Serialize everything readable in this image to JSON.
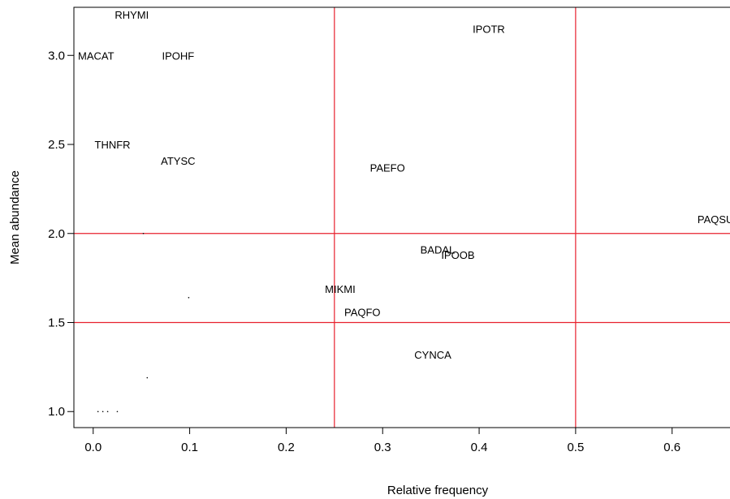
{
  "chart_data": {
    "type": "scatter",
    "xlabel": "Relative frequency",
    "ylabel": "Mean abundance",
    "xlim": [
      -0.02,
      0.66
    ],
    "ylim": [
      0.91,
      3.27
    ],
    "x_ticks": [
      "0.0",
      "0.1",
      "0.2",
      "0.3",
      "0.4",
      "0.5",
      "0.6"
    ],
    "y_ticks": [
      "1.0",
      "1.5",
      "2.0",
      "2.5",
      "3.0"
    ],
    "reference_lines": {
      "x": [
        0.25,
        0.5
      ],
      "y": [
        1.5,
        2.0
      ],
      "color": "#e8202e"
    },
    "points": [
      {
        "label": "RHYMI",
        "x": 0.04,
        "y": 3.23
      },
      {
        "label": "IPOTR",
        "x": 0.41,
        "y": 3.15
      },
      {
        "label": "MACAT",
        "x": 0.003,
        "y": 3.0
      },
      {
        "label": "IPOHF",
        "x": 0.088,
        "y": 3.0
      },
      {
        "label": "THNFR",
        "x": 0.02,
        "y": 2.5
      },
      {
        "label": "ATYSC",
        "x": 0.088,
        "y": 2.41
      },
      {
        "label": "PAEFO",
        "x": 0.305,
        "y": 2.37
      },
      {
        "label": "PAQSU",
        "x": 0.645,
        "y": 2.08
      },
      {
        "label": "BADAL",
        "x": 0.357,
        "y": 1.91
      },
      {
        "label": "IPOOB",
        "x": 0.378,
        "y": 1.88
      },
      {
        "label": "MIKMI",
        "x": 0.256,
        "y": 1.69
      },
      {
        "label": "PAQFO",
        "x": 0.279,
        "y": 1.56
      },
      {
        "label": "CYNCA",
        "x": 0.352,
        "y": 1.32
      }
    ],
    "dots": [
      {
        "x": 0.052,
        "y": 2.0
      },
      {
        "x": 0.099,
        "y": 1.64
      },
      {
        "x": 0.056,
        "y": 1.19
      },
      {
        "x": 0.005,
        "y": 1.0
      },
      {
        "x": 0.01,
        "y": 1.0
      },
      {
        "x": 0.015,
        "y": 1.0
      },
      {
        "x": 0.025,
        "y": 1.0
      }
    ],
    "grid": false
  }
}
